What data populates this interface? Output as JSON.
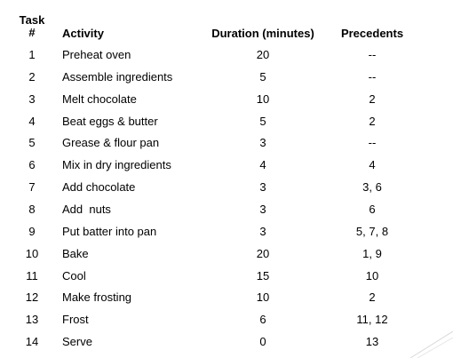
{
  "headers": {
    "task_line1": "Task",
    "task_line2": "#",
    "activity": "Activity",
    "duration": "Duration (minutes)",
    "precedents": "Precedents"
  },
  "rows": [
    {
      "task": "1",
      "activity": "Preheat oven",
      "duration": "20",
      "precedents": "--"
    },
    {
      "task": "2",
      "activity": "Assemble ingredients",
      "duration": "5",
      "precedents": "--"
    },
    {
      "task": "3",
      "activity": "Melt chocolate",
      "duration": "10",
      "precedents": "2"
    },
    {
      "task": "4",
      "activity": "Beat eggs & butter",
      "duration": "5",
      "precedents": "2"
    },
    {
      "task": "5",
      "activity": "Grease & flour pan",
      "duration": "3",
      "precedents": "--"
    },
    {
      "task": "6",
      "activity": "Mix in dry ingredients",
      "duration": "4",
      "precedents": "4"
    },
    {
      "task": "7",
      "activity": "Add chocolate",
      "duration": "3",
      "precedents": "3, 6"
    },
    {
      "task": "8",
      "activity": "Add  nuts",
      "duration": "3",
      "precedents": "6"
    },
    {
      "task": "9",
      "activity": "Put batter into pan",
      "duration": "3",
      "precedents": "5, 7, 8"
    },
    {
      "task": "10",
      "activity": "Bake",
      "duration": "20",
      "precedents": "1, 9"
    },
    {
      "task": "11",
      "activity": "Cool",
      "duration": "15",
      "precedents": "10"
    },
    {
      "task": "12",
      "activity": "Make frosting",
      "duration": "10",
      "precedents": "2"
    },
    {
      "task": "13",
      "activity": "Frost",
      "duration": "6",
      "precedents": "11, 12"
    },
    {
      "task": "14",
      "activity": "Serve",
      "duration": "0",
      "precedents": "13"
    }
  ]
}
